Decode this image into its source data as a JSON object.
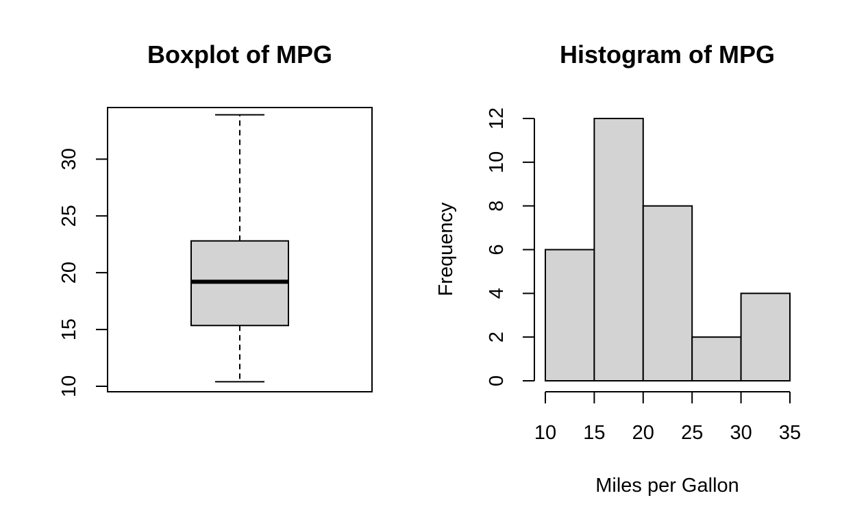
{
  "chart_data": [
    {
      "type": "boxplot",
      "title": "Boxplot of MPG",
      "ylabel": "",
      "ylim": [
        10,
        34
      ],
      "yticks": [
        10,
        15,
        20,
        25,
        30
      ],
      "stats": {
        "whisker_low": 10.4,
        "q1": 15.35,
        "median": 19.2,
        "q3": 22.8,
        "whisker_high": 33.9
      },
      "fill": "#d3d3d3"
    },
    {
      "type": "bar",
      "title": "Histogram of MPG",
      "xlabel": "Miles per Gallon",
      "ylabel": "Frequency",
      "bins": [
        {
          "from": 10,
          "to": 15,
          "count": 6
        },
        {
          "from": 15,
          "to": 20,
          "count": 12
        },
        {
          "from": 20,
          "to": 25,
          "count": 8
        },
        {
          "from": 25,
          "to": 30,
          "count": 2
        },
        {
          "from": 30,
          "to": 35,
          "count": 4
        }
      ],
      "xticks": [
        10,
        15,
        20,
        25,
        30,
        35
      ],
      "yticks": [
        0,
        2,
        4,
        6,
        8,
        10,
        12
      ],
      "xlim": [
        10,
        35
      ],
      "ylim": [
        0,
        12
      ],
      "fill": "#d3d3d3"
    }
  ]
}
